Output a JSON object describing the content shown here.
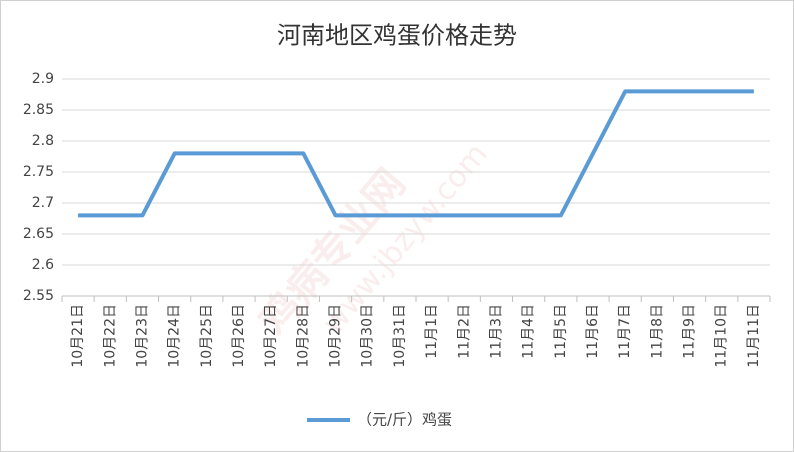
{
  "chart_data": {
    "type": "line",
    "title": "河南地区鸡蛋价格走势",
    "watermark": [
      "鸡病专业网",
      "www.jbzyw.com"
    ],
    "categories": [
      "10月21日",
      "10月22日",
      "10月23日",
      "10月24日",
      "10月25日",
      "10月26日",
      "10月27日",
      "10月28日",
      "10月29日",
      "10月30日",
      "10月31日",
      "11月1日",
      "11月2日",
      "11月3日",
      "11月4日",
      "11月5日",
      "11月6日",
      "11月7日",
      "11月8日",
      "11月9日",
      "11月10日",
      "11月11日"
    ],
    "series": [
      {
        "name": "（元/斤）鸡蛋",
        "color": "#5b9bd5",
        "values": [
          2.68,
          2.68,
          2.68,
          2.78,
          2.78,
          2.78,
          2.78,
          2.78,
          2.68,
          2.68,
          2.68,
          2.68,
          2.68,
          2.68,
          2.68,
          2.68,
          2.78,
          2.88,
          2.88,
          2.88,
          2.88,
          2.88
        ]
      }
    ],
    "ylim": [
      2.55,
      2.9
    ],
    "yticks": [
      2.55,
      2.6,
      2.65,
      2.7,
      2.75,
      2.8,
      2.85,
      2.9
    ],
    "grid": true,
    "legend": "bottom"
  }
}
